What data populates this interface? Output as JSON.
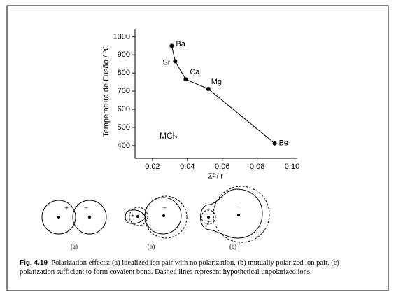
{
  "chart_data": {
    "type": "line",
    "y_label": "Temperatura de Fusão / ºC",
    "x_label": "Z² / r",
    "annotation": "MCl₂",
    "x": [
      0.031,
      0.033,
      0.039,
      0.052,
      0.09
    ],
    "values": [
      950,
      865,
      765,
      712,
      412
    ],
    "point_labels": [
      "Ba",
      "Sr",
      "Ca",
      "Mg",
      "Be"
    ],
    "color": "#000000",
    "xlim": [
      0.01,
      0.103
    ],
    "xticks": [
      0.02,
      0.04,
      0.06,
      0.08,
      {
        "value": 0.1,
        "label": "0.10"
      }
    ],
    "ylim": [
      330,
      1040
    ],
    "yticks": [
      400,
      500,
      600,
      700,
      800,
      900,
      1000
    ]
  },
  "diagrams": [
    {
      "label": "(a)",
      "cation": "+",
      "anion": "−"
    },
    {
      "label": "(b)",
      "cation": "+",
      "anion": "−"
    },
    {
      "label": "(c)",
      "cation": "+",
      "anion": "−"
    }
  ],
  "caption": {
    "label": "Fig. 4.19",
    "text": "Polarization effects: (a) idealized ion pair with no polarization, (b) mutually polarized ion pair, (c) polarization sufficient to form covalent bond. Dashed lines represent hypothetical unpolarized ions."
  }
}
